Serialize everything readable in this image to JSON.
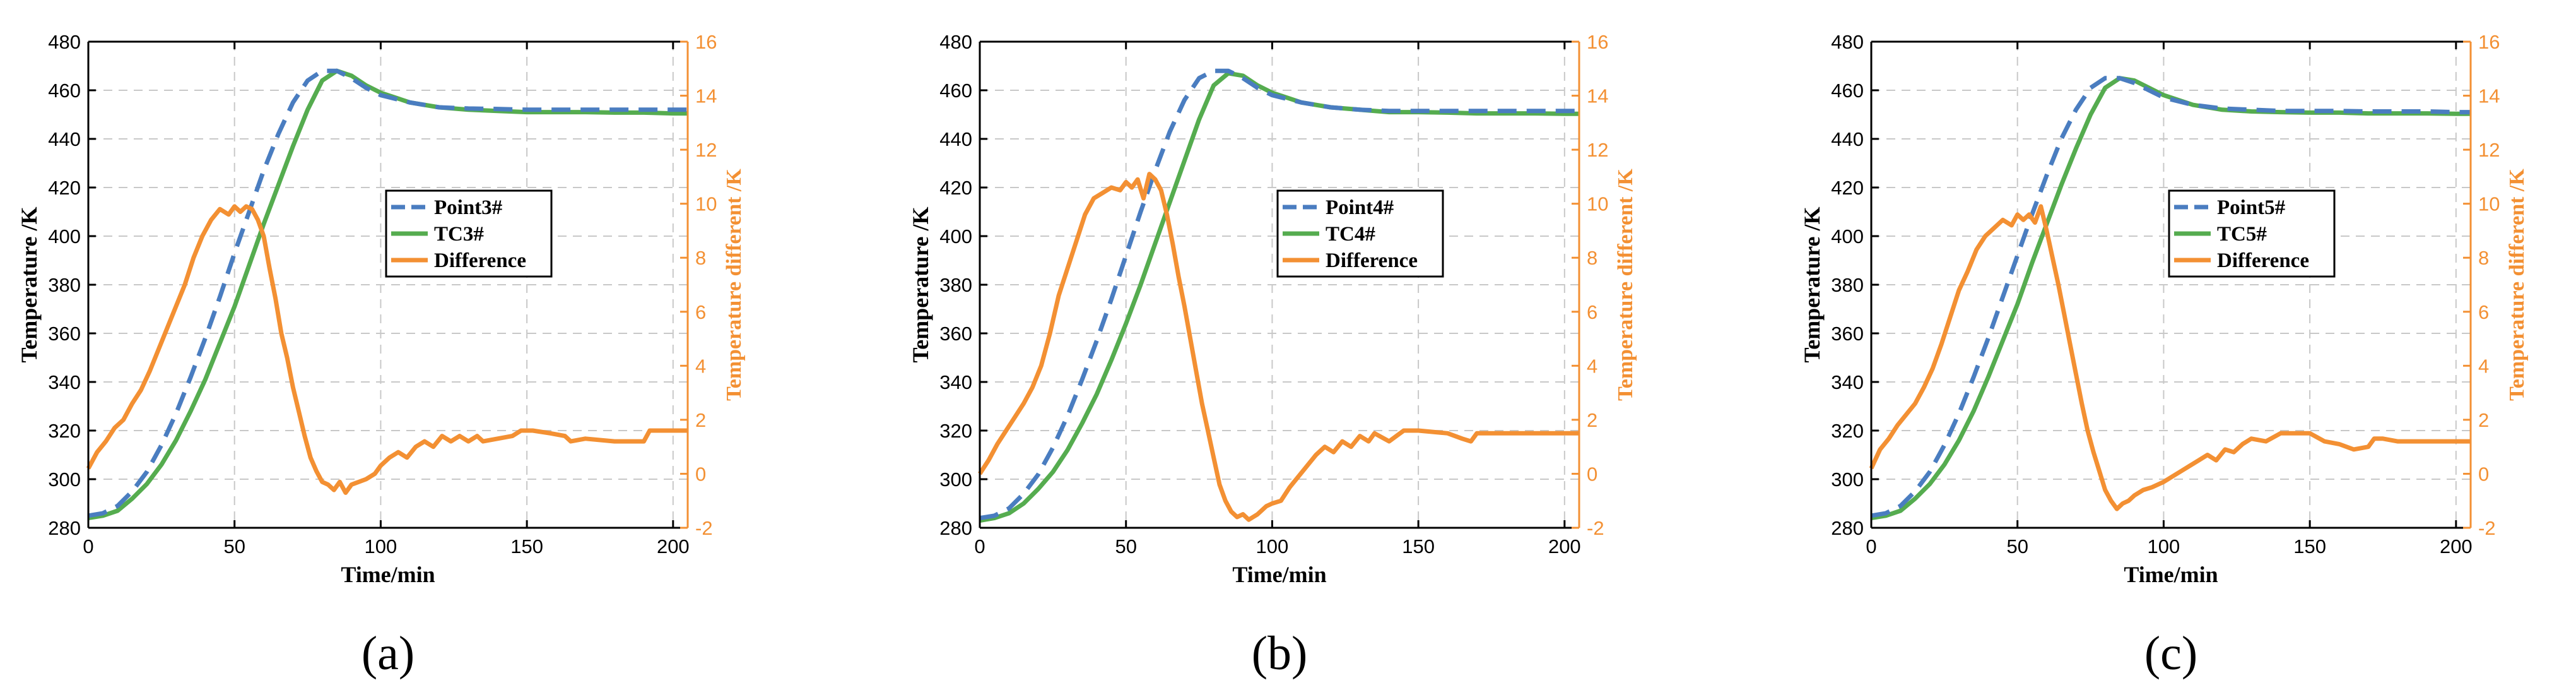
{
  "colors": {
    "model": "#4A7DC0",
    "tc": "#55AC4F",
    "difference": "#F39033",
    "grid": "#c8c8c8",
    "axis": "#000000"
  },
  "chart_data": [
    {
      "type": "line",
      "panel_label": "(a)",
      "xlabel": "Time/min",
      "ylabel": "Temperature /K",
      "y2label": "Temperature different /K",
      "xlim": [
        0,
        205
      ],
      "ylim": [
        280,
        480
      ],
      "y2lim": [
        -2,
        16
      ],
      "xticks": [
        "0",
        "50",
        "100",
        "150",
        "200"
      ],
      "yticks": [
        "280",
        "300",
        "320",
        "340",
        "360",
        "380",
        "400",
        "420",
        "440",
        "460",
        "480"
      ],
      "y2ticks": [
        "-2",
        "0",
        "2",
        "4",
        "6",
        "8",
        "10",
        "12",
        "14",
        "16"
      ],
      "grid": true,
      "legend": [
        "Point3#",
        "TC3#",
        "Difference"
      ],
      "series": [
        {
          "name": "Point3#",
          "axis": "left",
          "style": "dashed",
          "x": [
            0,
            5,
            10,
            15,
            20,
            25,
            30,
            35,
            40,
            45,
            50,
            55,
            60,
            65,
            70,
            75,
            80,
            85,
            90,
            95,
            100,
            110,
            120,
            130,
            140,
            150,
            160,
            170,
            180,
            190,
            200,
            205
          ],
          "y": [
            285,
            286,
            289,
            295,
            303,
            314,
            327,
            342,
            358,
            375,
            393,
            410,
            427,
            442,
            455,
            464,
            468,
            468,
            465,
            461,
            458,
            455,
            453,
            452.5,
            452.3,
            452,
            452,
            452,
            452,
            452,
            452,
            452
          ]
        },
        {
          "name": "TC3#",
          "axis": "left",
          "style": "solid",
          "x": [
            0,
            5,
            10,
            15,
            20,
            25,
            30,
            35,
            40,
            45,
            50,
            55,
            60,
            65,
            70,
            75,
            80,
            85,
            90,
            95,
            100,
            110,
            120,
            130,
            140,
            150,
            160,
            170,
            180,
            190,
            200,
            205
          ],
          "y": [
            284,
            285,
            287,
            292,
            298,
            306,
            316,
            328,
            341,
            356,
            371,
            388,
            405,
            421,
            437,
            452,
            464,
            468,
            466,
            462,
            459,
            455,
            453,
            452,
            451.5,
            451,
            451,
            451,
            450.8,
            450.8,
            450.5,
            450.5
          ]
        },
        {
          "name": "Difference",
          "axis": "right",
          "style": "solid",
          "x": [
            0,
            3,
            6,
            9,
            12,
            15,
            18,
            21,
            24,
            27,
            30,
            33,
            36,
            39,
            42,
            45,
            48,
            50,
            52,
            54,
            56,
            58,
            60,
            62,
            64,
            66,
            68,
            70,
            72,
            74,
            76,
            78,
            80,
            82,
            84,
            86,
            88,
            90,
            95,
            98,
            100,
            103,
            106,
            109,
            112,
            115,
            118,
            121,
            124,
            127,
            130,
            133,
            135,
            140,
            145,
            148,
            152,
            158,
            163,
            165,
            170,
            180,
            190,
            192,
            195,
            200,
            205
          ],
          "y": [
            0.2,
            0.8,
            1.2,
            1.7,
            2.0,
            2.6,
            3.1,
            3.8,
            4.6,
            5.4,
            6.2,
            7.0,
            8.0,
            8.8,
            9.4,
            9.8,
            9.6,
            9.9,
            9.7,
            9.9,
            9.8,
            9.4,
            8.8,
            7.6,
            6.5,
            5.2,
            4.3,
            3.2,
            2.3,
            1.4,
            0.6,
            0.1,
            -0.3,
            -0.4,
            -0.6,
            -0.3,
            -0.7,
            -0.4,
            -0.2,
            0.0,
            0.3,
            0.6,
            0.8,
            0.6,
            1.0,
            1.2,
            1.0,
            1.4,
            1.2,
            1.4,
            1.2,
            1.4,
            1.2,
            1.3,
            1.4,
            1.6,
            1.6,
            1.5,
            1.4,
            1.2,
            1.3,
            1.2,
            1.2,
            1.6,
            1.6,
            1.6,
            1.6
          ]
        }
      ]
    },
    {
      "type": "line",
      "panel_label": "(b)",
      "xlabel": "Time/min",
      "ylabel": "Temperature /K",
      "y2label": "Temperature different /K",
      "xlim": [
        0,
        205
      ],
      "ylim": [
        280,
        480
      ],
      "y2lim": [
        -2,
        16
      ],
      "xticks": [
        "0",
        "50",
        "100",
        "150",
        "200"
      ],
      "yticks": [
        "280",
        "300",
        "320",
        "340",
        "360",
        "380",
        "400",
        "420",
        "440",
        "460",
        "480"
      ],
      "y2ticks": [
        "-2",
        "0",
        "2",
        "4",
        "6",
        "8",
        "10",
        "12",
        "14",
        "16"
      ],
      "grid": true,
      "legend": [
        "Point4#",
        "TC4#",
        "Difference"
      ],
      "series": [
        {
          "name": "Point4#",
          "axis": "left",
          "style": "dashed",
          "x": [
            0,
            5,
            10,
            15,
            20,
            25,
            30,
            35,
            40,
            45,
            50,
            55,
            60,
            65,
            70,
            75,
            80,
            85,
            90,
            95,
            100,
            110,
            120,
            130,
            140,
            150,
            160,
            170,
            180,
            190,
            200,
            205
          ],
          "y": [
            284,
            285,
            288,
            294,
            302,
            313,
            326,
            341,
            357,
            374,
            392,
            410,
            427,
            443,
            456,
            465,
            468,
            468,
            465,
            461,
            458,
            455,
            453,
            452,
            451.5,
            451.5,
            451.5,
            451.5,
            451.5,
            451.5,
            451.5,
            451.5
          ]
        },
        {
          "name": "TC4#",
          "axis": "left",
          "style": "solid",
          "x": [
            0,
            5,
            10,
            15,
            20,
            25,
            30,
            35,
            40,
            45,
            50,
            55,
            60,
            65,
            70,
            75,
            80,
            85,
            90,
            95,
            100,
            110,
            120,
            130,
            140,
            150,
            160,
            170,
            180,
            190,
            200,
            205
          ],
          "y": [
            283,
            284,
            286,
            290,
            296,
            303,
            312,
            323,
            335,
            349,
            364,
            380,
            397,
            414,
            431,
            448,
            462,
            467,
            466,
            462,
            459,
            455,
            453,
            452,
            451,
            451,
            450.8,
            450.5,
            450.5,
            450.5,
            450.3,
            450.3
          ]
        },
        {
          "name": "Difference",
          "axis": "right",
          "style": "solid",
          "x": [
            0,
            3,
            6,
            9,
            12,
            15,
            18,
            21,
            24,
            27,
            30,
            33,
            36,
            39,
            42,
            45,
            48,
            50,
            52,
            54,
            56,
            58,
            60,
            62,
            64,
            66,
            68,
            70,
            72,
            74,
            76,
            78,
            80,
            82,
            84,
            86,
            88,
            90,
            92,
            95,
            98,
            100,
            103,
            106,
            109,
            112,
            115,
            118,
            121,
            124,
            127,
            130,
            133,
            135,
            140,
            145,
            150,
            160,
            165,
            168,
            170,
            180,
            190,
            200,
            205
          ],
          "y": [
            0.0,
            0.5,
            1.1,
            1.6,
            2.1,
            2.6,
            3.2,
            4.0,
            5.2,
            6.6,
            7.6,
            8.6,
            9.6,
            10.2,
            10.4,
            10.6,
            10.5,
            10.8,
            10.6,
            10.9,
            10.2,
            11.1,
            10.9,
            10.5,
            9.6,
            8.5,
            7.3,
            6.2,
            5.0,
            3.8,
            2.6,
            1.6,
            0.6,
            -0.4,
            -1.0,
            -1.4,
            -1.6,
            -1.5,
            -1.7,
            -1.5,
            -1.2,
            -1.1,
            -1.0,
            -0.5,
            -0.1,
            0.3,
            0.7,
            1.0,
            0.8,
            1.2,
            1.0,
            1.4,
            1.2,
            1.5,
            1.2,
            1.6,
            1.6,
            1.5,
            1.3,
            1.2,
            1.5,
            1.5,
            1.5,
            1.5,
            1.5
          ]
        }
      ]
    },
    {
      "type": "line",
      "panel_label": "(c)",
      "xlabel": "Time/min",
      "ylabel": "Temperature /K",
      "y2label": "Temperature different /K",
      "xlim": [
        0,
        205
      ],
      "ylim": [
        280,
        480
      ],
      "y2lim": [
        -2,
        16
      ],
      "xticks": [
        "0",
        "50",
        "100",
        "150",
        "200"
      ],
      "yticks": [
        "280",
        "300",
        "320",
        "340",
        "360",
        "380",
        "400",
        "420",
        "440",
        "460",
        "480"
      ],
      "y2ticks": [
        "-2",
        "0",
        "2",
        "4",
        "6",
        "8",
        "10",
        "12",
        "14",
        "16"
      ],
      "grid": true,
      "legend": [
        "Point5#",
        "TC5#",
        "Difference"
      ],
      "series": [
        {
          "name": "Point5#",
          "axis": "left",
          "style": "dashed",
          "x": [
            0,
            5,
            10,
            15,
            20,
            25,
            30,
            35,
            40,
            45,
            50,
            55,
            60,
            65,
            70,
            75,
            80,
            85,
            90,
            95,
            100,
            110,
            120,
            130,
            140,
            150,
            160,
            170,
            180,
            190,
            200,
            205
          ],
          "y": [
            285,
            286,
            289,
            295,
            303,
            314,
            327,
            342,
            358,
            375,
            392,
            409,
            425,
            440,
            452,
            461,
            465,
            465,
            463,
            460,
            457,
            454,
            452.5,
            452,
            451.5,
            451.5,
            451.5,
            451.3,
            451.3,
            451.3,
            451,
            451
          ]
        },
        {
          "name": "TC5#",
          "axis": "left",
          "style": "solid",
          "x": [
            0,
            5,
            10,
            15,
            20,
            25,
            30,
            35,
            40,
            45,
            50,
            55,
            60,
            65,
            70,
            75,
            80,
            85,
            90,
            95,
            100,
            110,
            120,
            130,
            140,
            150,
            160,
            170,
            180,
            190,
            200,
            205
          ],
          "y": [
            284,
            285,
            287,
            292,
            298,
            306,
            316,
            328,
            342,
            357,
            372,
            389,
            405,
            421,
            436,
            450,
            461,
            465,
            464,
            461,
            458,
            454,
            452,
            451.3,
            451,
            450.8,
            450.8,
            450.5,
            450.5,
            450.5,
            450.3,
            450.3
          ]
        },
        {
          "name": "Difference",
          "axis": "right",
          "style": "solid",
          "x": [
            0,
            3,
            6,
            9,
            12,
            15,
            18,
            21,
            24,
            27,
            30,
            33,
            36,
            39,
            42,
            45,
            48,
            50,
            52,
            54,
            56,
            58,
            60,
            62,
            64,
            66,
            68,
            70,
            72,
            74,
            76,
            78,
            80,
            82,
            84,
            86,
            88,
            90,
            93,
            96,
            100,
            103,
            106,
            109,
            112,
            115,
            118,
            121,
            124,
            127,
            130,
            135,
            140,
            145,
            150,
            155,
            160,
            165,
            170,
            172,
            175,
            180,
            190,
            200,
            205
          ],
          "y": [
            0.2,
            0.9,
            1.3,
            1.8,
            2.2,
            2.6,
            3.2,
            3.9,
            4.8,
            5.8,
            6.8,
            7.5,
            8.3,
            8.8,
            9.1,
            9.4,
            9.2,
            9.6,
            9.4,
            9.6,
            9.3,
            9.9,
            9.0,
            8.0,
            7.0,
            5.9,
            4.8,
            3.7,
            2.6,
            1.6,
            0.8,
            0.1,
            -0.6,
            -1.0,
            -1.3,
            -1.1,
            -1.0,
            -0.8,
            -0.6,
            -0.5,
            -0.3,
            -0.1,
            0.1,
            0.3,
            0.5,
            0.7,
            0.5,
            0.9,
            0.8,
            1.1,
            1.3,
            1.2,
            1.5,
            1.5,
            1.5,
            1.2,
            1.1,
            0.9,
            1.0,
            1.3,
            1.3,
            1.2,
            1.2,
            1.2,
            1.2
          ]
        }
      ]
    }
  ]
}
